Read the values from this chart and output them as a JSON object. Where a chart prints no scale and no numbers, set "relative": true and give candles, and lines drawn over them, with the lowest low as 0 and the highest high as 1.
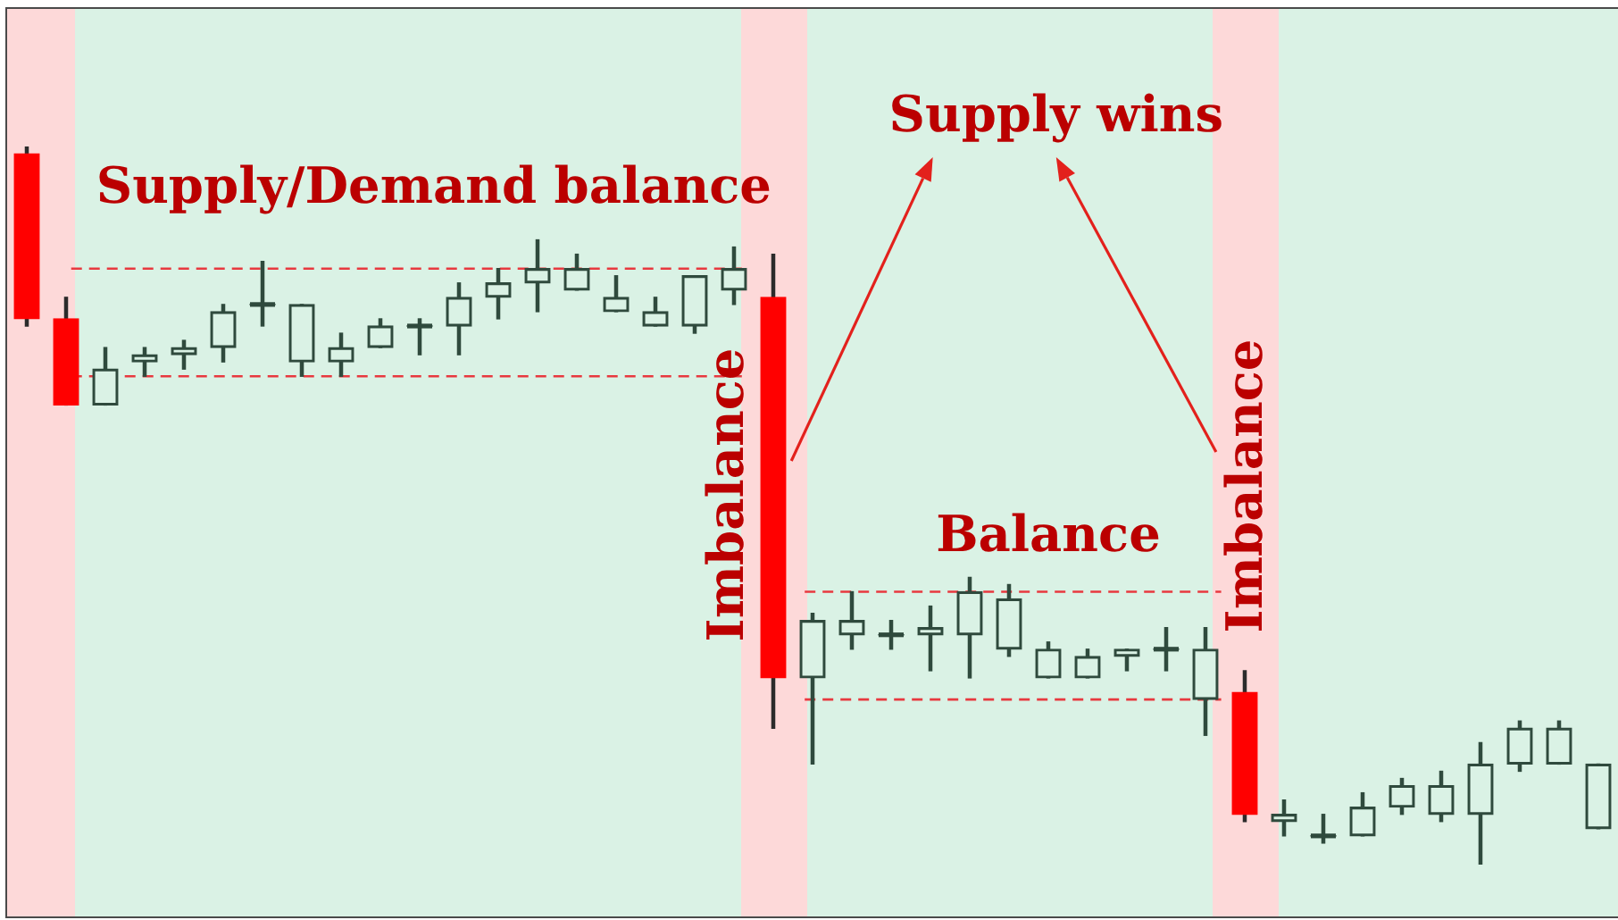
{
  "chart_data": {
    "type": "candlestick",
    "relative": true,
    "categories": [
      null,
      null,
      null,
      null,
      null,
      null,
      null,
      null,
      null,
      null,
      null,
      null,
      null,
      null,
      null,
      null,
      null,
      null,
      null,
      null,
      null,
      null,
      null,
      null,
      null,
      null,
      null,
      null,
      null,
      null,
      null,
      null,
      null,
      null,
      null,
      null,
      null,
      null,
      null,
      null,
      null
    ],
    "ohlc": [
      [
        0.99,
        1,
        0.75,
        0.76
      ],
      [
        0.76,
        0.79,
        0.64,
        0.64
      ],
      [
        0.64,
        0.72,
        0.64,
        0.69
      ],
      [
        0.7,
        0.72,
        0.68,
        0.71
      ],
      [
        0.71,
        0.73,
        0.69,
        0.72
      ],
      [
        0.72,
        0.78,
        0.7,
        0.77
      ],
      [
        0.78,
        0.84,
        0.75,
        0.78
      ],
      [
        0.7,
        0.78,
        0.68,
        0.78
      ],
      [
        0.7,
        0.74,
        0.68,
        0.72
      ],
      [
        0.72,
        0.76,
        0.72,
        0.75
      ],
      [
        0.75,
        0.76,
        0.71,
        0.75
      ],
      [
        0.75,
        0.81,
        0.71,
        0.79
      ],
      [
        0.79,
        0.83,
        0.76,
        0.81
      ],
      [
        0.81,
        0.87,
        0.77,
        0.83
      ],
      [
        0.8,
        0.85,
        0.8,
        0.83
      ],
      [
        0.77,
        0.82,
        0.77,
        0.79
      ],
      [
        0.75,
        0.79,
        0.75,
        0.77
      ],
      [
        0.75,
        0.82,
        0.74,
        0.82
      ],
      [
        0.8,
        0.86,
        0.78,
        0.83
      ],
      [
        0.79,
        0.85,
        0.19,
        0.26
      ],
      [
        0.26,
        0.35,
        0.14,
        0.34
      ],
      [
        0.32,
        0.38,
        0.3,
        0.34
      ],
      [
        0.32,
        0.34,
        0.3,
        0.32
      ],
      [
        0.32,
        0.36,
        0.27,
        0.33
      ],
      [
        0.32,
        0.4,
        0.26,
        0.38
      ],
      [
        0.3,
        0.39,
        0.29,
        0.37
      ],
      [
        0.26,
        0.31,
        0.26,
        0.3
      ],
      [
        0.26,
        0.3,
        0.26,
        0.29
      ],
      [
        0.29,
        0.3,
        0.27,
        0.3
      ],
      [
        0.3,
        0.33,
        0.27,
        0.3
      ],
      [
        0.23,
        0.33,
        0.18,
        0.3
      ],
      [
        0.24,
        0.27,
        0.06,
        0.07
      ],
      [
        0.06,
        0.09,
        0.04,
        0.07
      ],
      [
        0.04,
        0.07,
        0.03,
        0.04
      ],
      [
        0.04,
        0.1,
        0.04,
        0.08
      ],
      [
        0.08,
        0.12,
        0.07,
        0.11
      ],
      [
        0.07,
        0.13,
        0.06,
        0.11
      ],
      [
        0.07,
        0.17,
        0,
        0.14
      ],
      [
        0.14,
        0.2,
        0.13,
        0.19
      ],
      [
        0.14,
        0.2,
        0.14,
        0.19
      ],
      [
        0.05,
        0.14,
        0.05,
        0.14
      ]
    ],
    "colors": [
      "#ff0000",
      "#ff0000",
      "#2f4a3d",
      "#2f4a3d",
      "#2f4a3d",
      "#2f4a3d",
      "#2f4a3d",
      "#2f4a3d",
      "#2f4a3d",
      "#2f4a3d",
      "#2f4a3d",
      "#2f4a3d",
      "#2f4a3d",
      "#2f4a3d",
      "#2f4a3d",
      "#2f4a3d",
      "#2f4a3d",
      "#2f4a3d",
      "#2f4a3d",
      "#ff0000",
      "#2f4a3d",
      "#2f4a3d",
      "#2f4a3d",
      "#2f4a3d",
      "#2f4a3d",
      "#2f4a3d",
      "#2f4a3d",
      "#2f4a3d",
      "#2f4a3d",
      "#2f4a3d",
      "#2f4a3d",
      "#ff0000",
      "#2f4a3d",
      "#2f4a3d",
      "#2f4a3d",
      "#2f4a3d",
      "#2f4a3d",
      "#2f4a3d",
      "#2f4a3d",
      "#2f4a3d",
      "#2f4a3d"
    ],
    "ref_lines": [
      {
        "axis": "y",
        "value": 0.83,
        "color": "#e8393f",
        "line_style": "dashed"
      },
      {
        "axis": "y",
        "value": 0.68,
        "color": "#e8393f",
        "line_style": "dashed"
      },
      {
        "axis": "y",
        "value": 0.38,
        "color": "#e8393f",
        "line_style": "dashed"
      },
      {
        "axis": "y",
        "value": 0.23,
        "color": "#e8393f",
        "line_style": "dashed"
      }
    ],
    "annotations": [
      "Supply wins",
      "Supply/Demand balance",
      "Imbalance",
      "Balance",
      "Imbalance"
    ]
  }
}
